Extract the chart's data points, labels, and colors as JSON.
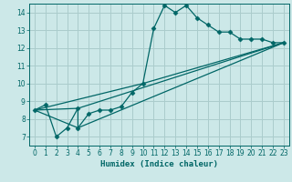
{
  "bg_color": "#cce8e8",
  "grid_color": "#aacccc",
  "line_color": "#006666",
  "marker_color": "#006666",
  "xlabel": "Humidex (Indice chaleur)",
  "xlim": [
    -0.5,
    23.5
  ],
  "ylim": [
    6.5,
    14.5
  ],
  "xticks": [
    0,
    1,
    2,
    3,
    4,
    5,
    6,
    7,
    8,
    9,
    10,
    11,
    12,
    13,
    14,
    15,
    16,
    17,
    18,
    19,
    20,
    21,
    22,
    23
  ],
  "yticks": [
    7,
    8,
    9,
    10,
    11,
    12,
    13,
    14
  ],
  "series": [
    [
      0,
      8.5
    ],
    [
      1,
      8.8
    ],
    [
      2,
      7.0
    ],
    [
      3,
      7.5
    ],
    [
      4,
      8.6
    ],
    [
      4,
      7.5
    ],
    [
      5,
      8.3
    ],
    [
      6,
      8.5
    ],
    [
      7,
      8.5
    ],
    [
      8,
      8.7
    ],
    [
      9,
      9.5
    ],
    [
      10,
      10.0
    ],
    [
      11,
      13.1
    ],
    [
      12,
      14.4
    ],
    [
      13,
      14.0
    ],
    [
      14,
      14.4
    ],
    [
      15,
      13.7
    ],
    [
      16,
      13.3
    ],
    [
      17,
      12.9
    ],
    [
      18,
      12.9
    ],
    [
      19,
      12.5
    ],
    [
      20,
      12.5
    ],
    [
      21,
      12.5
    ],
    [
      22,
      12.3
    ],
    [
      23,
      12.3
    ]
  ],
  "line2": [
    [
      0,
      8.5
    ],
    [
      4,
      7.5
    ],
    [
      23,
      12.3
    ]
  ],
  "line3": [
    [
      0,
      8.5
    ],
    [
      4,
      8.6
    ],
    [
      23,
      12.3
    ]
  ],
  "line4": [
    [
      0,
      8.5
    ],
    [
      10,
      10.0
    ],
    [
      23,
      12.3
    ]
  ]
}
